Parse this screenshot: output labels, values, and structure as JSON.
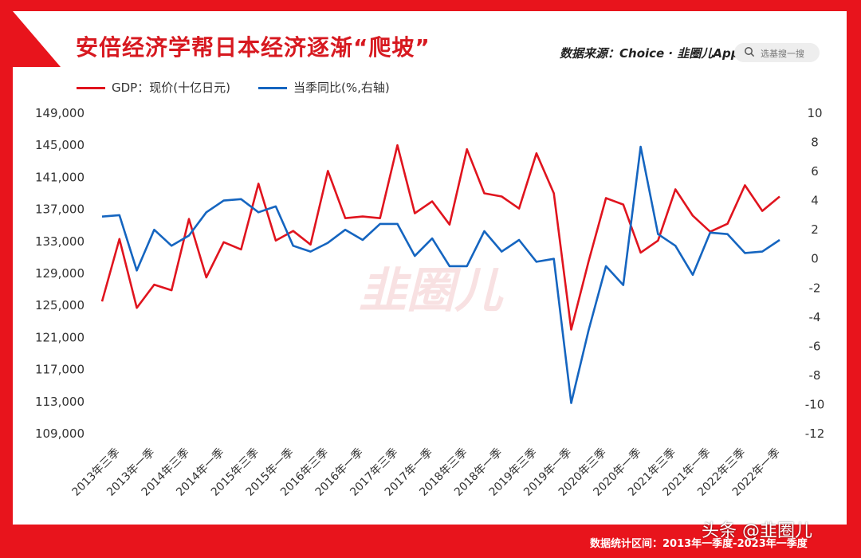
{
  "title": "安倍经济学帮日本经济逐渐“爬坡”",
  "source": "数据来源：Choice · 韭圈儿App",
  "search": {
    "placeholder": "选基搜一搜",
    "icon": "search-icon"
  },
  "footer_note": "数据统计区间：2013年一季度-2023年一季度",
  "brand_tag": "头条 @韭圈儿",
  "watermark": "韭圈儿",
  "colors": {
    "frame": "#e8141c",
    "gdp": "#e0141e",
    "yoy": "#1565c0"
  },
  "chart_data": {
    "type": "line",
    "legend_position": "top-left",
    "grid": false,
    "x_tick_labels": [
      "2013年三季",
      "2013年一季",
      "2014年三季",
      "2014年一季",
      "2015年三季",
      "2015年一季",
      "2016年三季",
      "2016年一季",
      "2017年三季",
      "2017年一季",
      "2018年三季",
      "2018年一季",
      "2019年三季",
      "2019年一季",
      "2020年三季",
      "2020年一季",
      "2021年三季",
      "2021年一季",
      "2022年三季",
      "2022年一季"
    ],
    "y_left": {
      "ticks": [
        "149,000",
        "145,000",
        "141,000",
        "137,000",
        "133,000",
        "129,000",
        "125,000",
        "121,000",
        "117,000",
        "113,000",
        "109,000"
      ],
      "min": 109000,
      "max": 149000
    },
    "y_right": {
      "ticks": [
        "10",
        "8",
        "6",
        "4",
        "2",
        "0",
        "-2",
        "-4",
        "-6",
        "-8",
        "-10",
        "-12"
      ],
      "min": -12,
      "max": 10
    },
    "series": [
      {
        "name": "GDP：现价(十亿日元)",
        "axis": "left",
        "values": [
          125500,
          133300,
          124700,
          127600,
          126900,
          135800,
          128500,
          132900,
          132000,
          140200,
          133100,
          134300,
          132600,
          141800,
          135900,
          136100,
          135900,
          145000,
          136500,
          138000,
          135100,
          144500,
          139000,
          138600,
          137100,
          144000,
          139000,
          122000,
          130500,
          138400,
          137600,
          131600,
          133100,
          139500,
          136200,
          134200,
          135200,
          140000,
          136800,
          138600
        ]
      },
      {
        "name": "当季同比(%,右轴)",
        "axis": "right",
        "values": [
          2.9,
          3.0,
          -0.8,
          2.0,
          0.9,
          1.6,
          3.2,
          4.0,
          4.1,
          3.2,
          3.6,
          0.9,
          0.5,
          1.1,
          2.0,
          1.3,
          2.4,
          2.4,
          0.2,
          1.4,
          -0.5,
          -0.5,
          1.9,
          0.5,
          1.3,
          -0.2,
          0.0,
          -9.9,
          -4.9,
          -0.5,
          -1.8,
          7.7,
          1.7,
          0.9,
          -1.1,
          1.8,
          1.7,
          0.4,
          0.5,
          1.3
        ]
      }
    ]
  }
}
